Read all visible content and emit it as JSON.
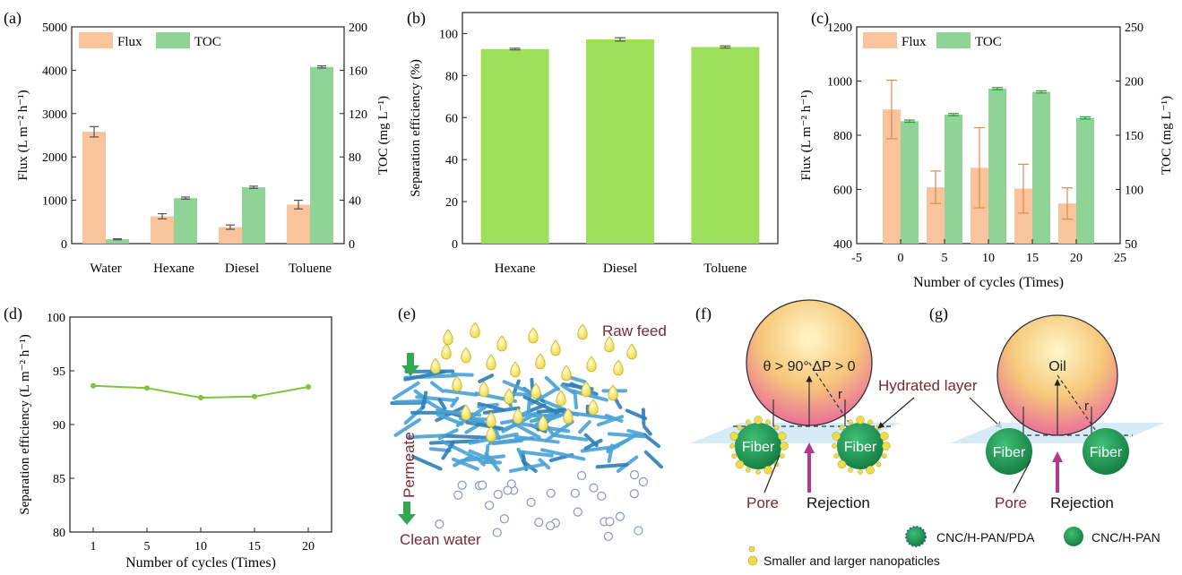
{
  "colors": {
    "flux": "#f9c39b",
    "flux_err": "#e08a4c",
    "toc": "#8fd396",
    "toc_err": "#2e9b35",
    "sep_bar": "#9fe05a",
    "sep_line": "#7bc43b",
    "axis": "#222222",
    "maroon": "#7a2a32",
    "green_arrow": "#33a852",
    "fiber": "#1f9a55",
    "mesh": "#4aa3d6",
    "pink_arrow": "#b23a8a"
  },
  "chart_data": [
    {
      "panel": "(a)",
      "type": "bar",
      "categories": [
        "Water",
        "Hexane",
        "Diesel",
        "Toluene"
      ],
      "series": [
        {
          "name": "Flux",
          "axis": "left",
          "values": [
            2580,
            630,
            380,
            900
          ],
          "errors": [
            120,
            60,
            50,
            100
          ]
        },
        {
          "name": "TOC",
          "axis": "right",
          "values": [
            4,
            42,
            52,
            163
          ],
          "errors": [
            0.5,
            1,
            1,
            1
          ]
        }
      ],
      "ylabel": "Flux (L m⁻² h⁻¹)",
      "y2label": "TOC (mg L⁻¹)",
      "ylim": [
        0,
        5000
      ],
      "y2lim": [
        0,
        200
      ],
      "yticks": [
        0,
        1000,
        2000,
        3000,
        4000,
        5000
      ],
      "y2ticks": [
        0,
        40,
        80,
        120,
        160,
        200
      ],
      "legend": "top-left"
    },
    {
      "panel": "(b)",
      "type": "bar",
      "categories": [
        "Hexane",
        "Diesel",
        "Toluene"
      ],
      "values": [
        92.6,
        97.2,
        93.6
      ],
      "errors": [
        0.4,
        0.8,
        0.5
      ],
      "ylabel": "Separation efficiency (%)",
      "ylim": [
        0,
        110
      ],
      "yticks": [
        0,
        20,
        40,
        60,
        80,
        100
      ]
    },
    {
      "panel": "(c)",
      "type": "bar",
      "x": [
        0,
        5,
        10,
        15,
        20
      ],
      "series": [
        {
          "name": "Flux",
          "axis": "left",
          "values": [
            895,
            608,
            680,
            603,
            548
          ],
          "errors": [
            108,
            60,
            148,
            90,
            58
          ]
        },
        {
          "name": "TOC",
          "axis": "right",
          "values": [
            163,
            169,
            193,
            190,
            166
          ],
          "errors": [
            1,
            1,
            1,
            1,
            1
          ]
        }
      ],
      "xlabel": "Number of cycles (Times)",
      "ylabel": "Flux (L m⁻² h⁻¹)",
      "y2label": "TOC (mg L⁻¹)",
      "xlim": [
        -5,
        25
      ],
      "xticks": [
        -5,
        0,
        5,
        10,
        15,
        20,
        25
      ],
      "ylim": [
        400,
        1200
      ],
      "yticks": [
        400,
        600,
        800,
        1000,
        1200
      ],
      "y2lim": [
        50,
        250
      ],
      "y2ticks": [
        50,
        100,
        150,
        200,
        250
      ],
      "legend": "top-left"
    },
    {
      "panel": "(d)",
      "type": "line",
      "x": [
        "1",
        "5",
        "10",
        "15",
        "20"
      ],
      "values": [
        93.6,
        93.4,
        92.5,
        92.6,
        93.5
      ],
      "xlabel": "Number of cycles (Times)",
      "ylabel": "Separation efficiency (L m⁻² h⁻¹)",
      "ylim": [
        80,
        100
      ],
      "yticks": [
        80,
        85,
        90,
        95,
        100
      ]
    }
  ],
  "diagram_e": {
    "panel": "(e)",
    "raw_feed": "Raw feed",
    "permeate": "Permeate",
    "clean_water": "Clean water"
  },
  "diagram_f": {
    "panel": "(f)",
    "condition": "θ > 90°  ΔP > 0",
    "r": "r",
    "fiber_left": "Fiber",
    "fiber_right": "Fiber",
    "pore": "Pore",
    "rejection": "Rejection",
    "hydrated_layer": "Hydrated layer"
  },
  "diagram_g": {
    "panel": "(g)",
    "oil": "Oil",
    "r": "r",
    "fiber_left": "Fiber",
    "fiber_right": "Fiber",
    "pore": "Pore",
    "rejection": "Rejection"
  },
  "legend_fg": {
    "pda": "CNC/H-PAN/PDA",
    "pan": "CNC/H-PAN",
    "np": "Smaller and larger nanopaticles"
  }
}
